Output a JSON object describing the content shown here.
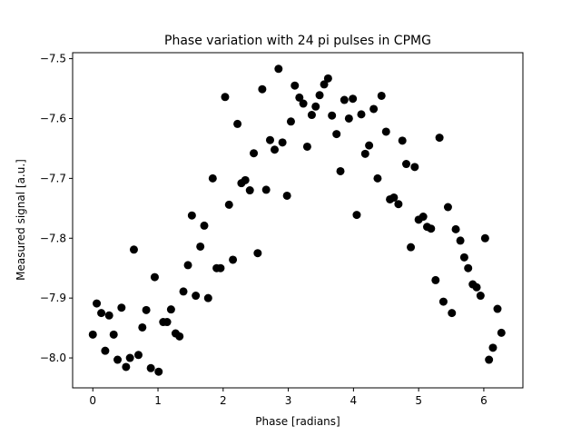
{
  "chart_data": {
    "type": "scatter",
    "title": "Phase variation with 24 pi pulses in CPMG",
    "xlabel": "Phase [radians]",
    "ylabel": "Measured signal [a.u.]",
    "xlim": [
      -0.31,
      6.6
    ],
    "ylim": [
      -8.05,
      -7.49
    ],
    "xticks": [
      0,
      1,
      2,
      3,
      4,
      5,
      6
    ],
    "xtick_labels": [
      "0",
      "1",
      "2",
      "3",
      "4",
      "5",
      "6"
    ],
    "yticks": [
      -8.0,
      -7.9,
      -7.8,
      -7.7,
      -7.6,
      -7.5
    ],
    "ytick_labels": [
      "−8.0",
      "−7.9",
      "−7.8",
      "−7.7",
      "−7.6",
      "−7.5"
    ],
    "grid": false,
    "marker_color": "#000000",
    "series": [
      {
        "x": [
          0.0,
          0.06,
          0.13,
          0.19,
          0.25,
          0.32,
          0.38,
          0.44,
          0.51,
          0.57,
          0.63,
          0.7,
          0.76,
          0.82,
          0.89,
          0.95,
          1.01,
          1.08,
          1.14,
          1.2,
          1.27,
          1.33,
          1.39,
          1.46,
          1.52,
          1.58,
          1.65,
          1.71,
          1.77,
          1.84,
          1.9,
          1.96,
          2.03,
          2.09,
          2.15,
          2.22,
          2.28,
          2.34,
          2.41,
          2.47,
          2.53,
          2.6,
          2.66,
          2.72,
          2.79,
          2.85,
          2.91,
          2.98,
          3.04,
          3.1,
          3.17,
          3.23,
          3.29,
          3.36,
          3.42,
          3.48,
          3.55,
          3.61,
          3.67,
          3.74,
          3.8,
          3.86,
          3.93,
          3.99,
          4.05,
          4.12,
          4.18,
          4.24,
          4.31,
          4.37,
          4.43,
          4.5,
          4.56,
          4.62,
          4.69,
          4.75,
          4.81,
          4.88,
          4.94,
          5.0,
          5.07,
          5.13,
          5.19,
          5.26,
          5.32,
          5.38,
          5.45,
          5.51,
          5.57,
          5.64,
          5.7,
          5.76,
          5.83,
          5.89,
          5.95,
          6.02,
          6.08,
          6.14,
          6.21,
          6.27
        ],
        "y": [
          -7.961,
          -7.909,
          -7.925,
          -7.988,
          -7.929,
          -7.961,
          -8.003,
          -7.916,
          -8.015,
          -8.0,
          -7.819,
          -7.995,
          -7.949,
          -7.92,
          -8.017,
          -7.865,
          -8.023,
          -7.94,
          -7.94,
          -7.919,
          -7.959,
          -7.964,
          -7.889,
          -7.845,
          -7.762,
          -7.896,
          -7.814,
          -7.779,
          -7.9,
          -7.7,
          -7.85,
          -7.85,
          -7.564,
          -7.744,
          -7.836,
          -7.609,
          -7.708,
          -7.703,
          -7.72,
          -7.658,
          -7.825,
          -7.551,
          -7.719,
          -7.636,
          -7.652,
          -7.517,
          -7.64,
          -7.729,
          -7.605,
          -7.545,
          -7.565,
          -7.575,
          -7.647,
          -7.594,
          -7.58,
          -7.561,
          -7.543,
          -7.533,
          -7.595,
          -7.626,
          -7.688,
          -7.569,
          -7.6,
          -7.567,
          -7.761,
          -7.593,
          -7.659,
          -7.645,
          -7.584,
          -7.7,
          -7.562,
          -7.622,
          -7.735,
          -7.732,
          -7.743,
          -7.637,
          -7.676,
          -7.815,
          -7.681,
          -7.769,
          -7.764,
          -7.781,
          -7.784,
          -7.87,
          -7.632,
          -7.906,
          -7.748,
          -7.925,
          -7.785,
          -7.804,
          -7.832,
          -7.85,
          -7.877,
          -7.882,
          -7.896,
          -7.8,
          -8.003,
          -7.983,
          -7.918,
          -7.958
        ]
      }
    ]
  }
}
